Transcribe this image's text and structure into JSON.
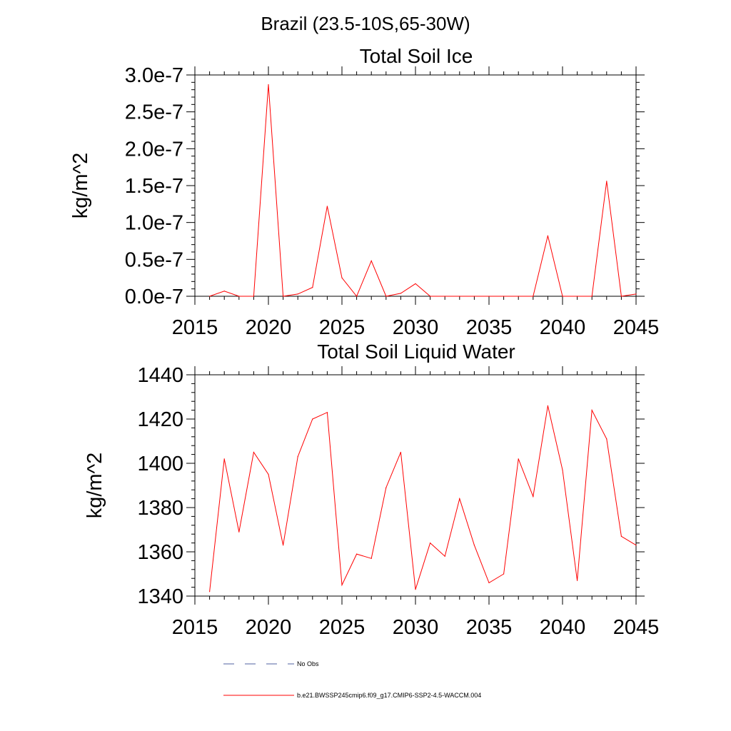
{
  "figure": {
    "title": "Brazil (23.5-10S,65-30W)"
  },
  "chart_data": [
    {
      "type": "line",
      "title": "Total Soil Ice",
      "xlabel": "",
      "ylabel": "kg/m^2",
      "xlim": [
        2015,
        2045
      ],
      "ylim": [
        0.0,
        3e-07
      ],
      "x_ticks": [
        2015,
        2020,
        2025,
        2030,
        2035,
        2040,
        2045
      ],
      "x_tick_labels": [
        "2015",
        "2020",
        "2025",
        "2030",
        "2035",
        "2040",
        "2045"
      ],
      "y_ticks": [
        0.0,
        5e-08,
        1e-07,
        1.5e-07,
        2e-07,
        2.5e-07,
        3e-07
      ],
      "y_tick_labels": [
        "0.0e-7",
        "0.5e-7",
        "1.0e-7",
        "1.5e-7",
        "2.0e-7",
        "2.5e-7",
        "3.0e-7"
      ],
      "grid": false,
      "series": [
        {
          "name": "b.e21.BWSSP245cmip6.f09_g17.CMIP6-SSP2-4.5-WACCM.004",
          "color": "#ff0000",
          "x": [
            2016,
            2017,
            2018,
            2019,
            2020,
            2021,
            2022,
            2023,
            2024,
            2025,
            2026,
            2027,
            2028,
            2029,
            2030,
            2031,
            2032,
            2033,
            2034,
            2035,
            2036,
            2037,
            2038,
            2039,
            2040,
            2041,
            2042,
            2043,
            2044,
            2045
          ],
          "values": [
            0.0,
            7e-09,
            0.0,
            0.0,
            2.87e-07,
            0.0,
            3e-09,
            1.2e-08,
            1.22e-07,
            2.5e-08,
            0.0,
            4.8e-08,
            0.0,
            4e-09,
            1.7e-08,
            0.0,
            0.0,
            0.0,
            0.0,
            0.0,
            0.0,
            0.0,
            0.0,
            8.2e-08,
            0.0,
            0.0,
            0.0,
            1.56e-07,
            0.0,
            3e-09
          ]
        }
      ]
    },
    {
      "type": "line",
      "title": "Total Soil Liquid Water",
      "xlabel": "",
      "ylabel": "kg/m^2",
      "xlim": [
        2015,
        2045
      ],
      "ylim": [
        1340,
        1440
      ],
      "x_ticks": [
        2015,
        2020,
        2025,
        2030,
        2035,
        2040,
        2045
      ],
      "x_tick_labels": [
        "2015",
        "2020",
        "2025",
        "2030",
        "2035",
        "2040",
        "2045"
      ],
      "y_ticks": [
        1340,
        1360,
        1380,
        1400,
        1420,
        1440
      ],
      "y_tick_labels": [
        "1340",
        "1360",
        "1380",
        "1400",
        "1420",
        "1440"
      ],
      "grid": false,
      "series": [
        {
          "name": "b.e21.BWSSP245cmip6.f09_g17.CMIP6-SSP2-4.5-WACCM.004",
          "color": "#ff0000",
          "x": [
            2016,
            2017,
            2018,
            2019,
            2020,
            2021,
            2022,
            2023,
            2024,
            2025,
            2026,
            2027,
            2028,
            2029,
            2030,
            2031,
            2032,
            2033,
            2034,
            2035,
            2036,
            2037,
            2038,
            2039,
            2040,
            2041,
            2042,
            2043,
            2044,
            2045
          ],
          "values": [
            1342,
            1402,
            1369,
            1405,
            1395,
            1363,
            1403,
            1420,
            1423,
            1345,
            1359,
            1357,
            1389,
            1405,
            1343,
            1364,
            1358,
            1384,
            1363,
            1346,
            1350,
            1402,
            1385,
            1426,
            1397,
            1347,
            1424,
            1411,
            1367,
            1363
          ]
        }
      ]
    }
  ],
  "legend": {
    "placement": "bottom",
    "entries": [
      {
        "label": "No Obs",
        "color": "#5060a0",
        "style": "dashed"
      },
      {
        "label": "b.e21.BWSSP245cmip6.f09_g17.CMIP6-SSP2-4.5-WACCM.004",
        "color": "#ff0000",
        "style": "solid"
      }
    ]
  }
}
